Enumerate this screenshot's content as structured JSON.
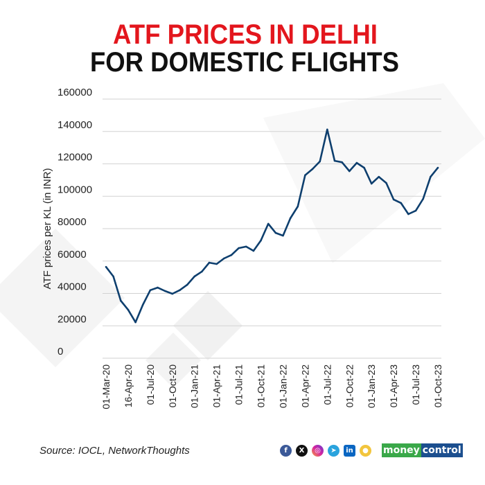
{
  "title": {
    "line1": "ATF PRICES IN DELHI",
    "line2": "FOR DOMESTIC FLIGHTS",
    "line1_color": "#e3161d",
    "line2_color": "#111111"
  },
  "chart_data": {
    "type": "line",
    "title": "ATF PRICES IN DELHI FOR DOMESTIC FLIGHTS",
    "xlabel": "",
    "ylabel": "ATF prices per KL (in INR)",
    "ylim": [
      0,
      160000
    ],
    "yticks": [
      0,
      20000,
      40000,
      60000,
      80000,
      100000,
      120000,
      140000,
      160000
    ],
    "grid": true,
    "line_color": "#0e3f6e",
    "x_tick_labels": [
      "01-Mar-20",
      "16-Apr-20",
      "01-Jul-20",
      "01-Oct-20",
      "01-Jan-21",
      "01-Apr-21",
      "01-Jul-21",
      "01-Oct-21",
      "01-Jan-22",
      "01-Apr-22",
      "01-Jul-22",
      "01-Oct-22",
      "01-Jan-23",
      "01-Apr-23",
      "01-Jul-23",
      "01-Oct-23"
    ],
    "values": [
      56400,
      50500,
      35500,
      29900,
      22200,
      33000,
      42000,
      43600,
      41500,
      39800,
      42000,
      45300,
      50500,
      53500,
      59000,
      58200,
      61600,
      63700,
      68000,
      68900,
      66300,
      72700,
      83000,
      77400,
      75700,
      86400,
      93700,
      113000,
      116800,
      121500,
      141200,
      121900,
      121000,
      115500,
      120600,
      117600,
      107800,
      112000,
      108200,
      98000,
      95800,
      89000,
      91100,
      98400,
      112000,
      117600
    ]
  },
  "footer": {
    "source": "Source: IOCL, NetworkThoughts",
    "social_icons": [
      "facebook-icon",
      "x-icon",
      "instagram-icon",
      "telegram-icon",
      "linkedin-icon",
      "koo-icon"
    ],
    "brand_part1": "money",
    "brand_part2": "control",
    "brand_color1": "#2e9e3c",
    "brand_color2": "#1c4f8f"
  }
}
